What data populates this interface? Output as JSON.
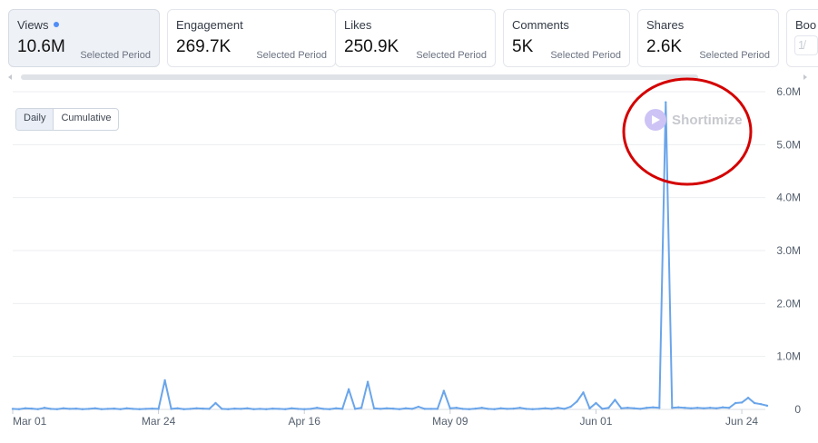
{
  "cards": [
    {
      "title": "Views",
      "value": "10.6M",
      "sub": "Selected Period",
      "active": true,
      "dot_color": "#4f8ef7"
    },
    {
      "title": "Engagement",
      "value": "269.7K",
      "sub": "Selected Period"
    },
    {
      "title": "Likes",
      "value": "250.9K",
      "sub": "Selected Period"
    },
    {
      "title": "Comments",
      "value": "5K",
      "sub": "Selected Period"
    },
    {
      "title": "Shares",
      "value": "2.6K",
      "sub": "Selected Period"
    },
    {
      "title": "Boo",
      "value": "",
      "sub": ""
    }
  ],
  "peek_glyph": "1̸",
  "toggle": {
    "daily": "Daily",
    "cumulative": "Cumulative",
    "selected": "Daily"
  },
  "watermark": {
    "text": "Shortimize",
    "color": "#c7c9ce",
    "logo_color": "#cdc3f5"
  },
  "annotation": {
    "shape": "ellipse",
    "color": "#d40000"
  },
  "chart_data": {
    "type": "line",
    "series": [
      {
        "color": "#6aa5ea",
        "values": [
          0.01,
          0.005,
          0.02,
          0.015,
          0.005,
          0.03,
          0.01,
          0.005,
          0.02,
          0.01,
          0.015,
          0.005,
          0.01,
          0.02,
          0.005,
          0.01,
          0.015,
          0.005,
          0.02,
          0.01,
          0.005,
          0.01,
          0.015,
          0.01,
          0.55,
          0.01,
          0.02,
          0.005,
          0.01,
          0.02,
          0.015,
          0.01,
          0.12,
          0.01,
          0.005,
          0.015,
          0.01,
          0.02,
          0.005,
          0.01,
          0.005,
          0.015,
          0.01,
          0.005,
          0.02,
          0.01,
          0.005,
          0.01,
          0.03,
          0.01,
          0.005,
          0.02,
          0.01,
          0.38,
          0.01,
          0.03,
          0.52,
          0.02,
          0.01,
          0.02,
          0.015,
          0.005,
          0.02,
          0.01,
          0.05,
          0.01,
          0.01,
          0.01,
          0.35,
          0.02,
          0.03,
          0.01,
          0.005,
          0.015,
          0.03,
          0.01,
          0.005,
          0.02,
          0.01,
          0.015,
          0.03,
          0.01,
          0.005,
          0.01,
          0.02,
          0.01,
          0.03,
          0.01,
          0.05,
          0.15,
          0.32,
          0.02,
          0.12,
          0.01,
          0.03,
          0.18,
          0.02,
          0.03,
          0.02,
          0.01,
          0.03,
          0.04,
          0.03,
          5.8,
          0.03,
          0.04,
          0.03,
          0.02,
          0.03,
          0.02,
          0.03,
          0.02,
          0.04,
          0.03,
          0.12,
          0.13,
          0.22,
          0.12,
          0.1,
          0.07
        ]
      }
    ],
    "x_tick_labels": [
      "Mar 01",
      "Mar 24",
      "Apr 16",
      "May 09",
      "Jun 01",
      "Jun 24"
    ],
    "x_tick_index": [
      0,
      23,
      46,
      69,
      92,
      115
    ],
    "y_tick_values": [
      0,
      1000000,
      2000000,
      3000000,
      4000000,
      5000000,
      6000000
    ],
    "y_tick_labels": [
      "0",
      "1.0M",
      "2.0M",
      "3.0M",
      "4.0M",
      "5.0M",
      "6.0M"
    ],
    "ylim": [
      0,
      6000000
    ],
    "y_unit": 1000000,
    "grid": true,
    "y_axis_side": "right"
  }
}
